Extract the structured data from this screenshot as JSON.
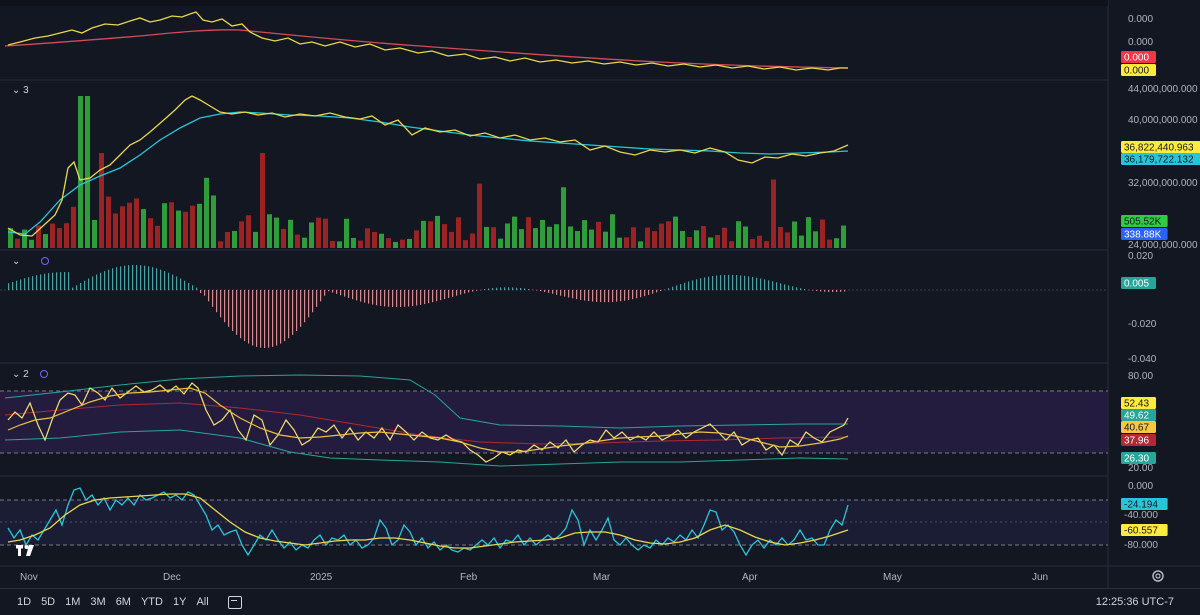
{
  "panes": {
    "price": {
      "right_ticks": [
        "0.000",
        "0.000"
      ],
      "badges": [
        {
          "value": "0.000",
          "bg": "#f23645",
          "fg": "#ffffff"
        },
        {
          "value": "0.000",
          "bg": "#ffeb3b",
          "fg": "#131722"
        }
      ]
    },
    "volume": {
      "collapse_label": "3",
      "right_ticks": [
        "44,000,000.000",
        "40,000,000.000",
        "32,000,000.000",
        "24,000,000.000"
      ],
      "badges": [
        {
          "value": "36,822,440.963",
          "bg": "#ffeb3b",
          "fg": "#131722"
        },
        {
          "value": "36,179,722.132",
          "bg": "#26c6da",
          "fg": "#131722"
        },
        {
          "value": "505.52K",
          "bg": "#2ecc40",
          "fg": "#131722"
        },
        {
          "value": "338.88K",
          "bg": "#2962ff",
          "fg": "#ffffff"
        }
      ]
    },
    "macd": {
      "right_ticks": [
        "0.020",
        "-0.020",
        "-0.040"
      ],
      "badge": {
        "value": "0.005",
        "bg": "#26a69a",
        "fg": "#ffffff"
      }
    },
    "rsi": {
      "collapse_label": "2",
      "right_ticks": [
        "80.00",
        "20.00"
      ],
      "badges": [
        {
          "value": "52.43",
          "bg": "#ffeb3b",
          "fg": "#131722"
        },
        {
          "value": "49.62",
          "bg": "#26a69a",
          "fg": "#ffffff"
        },
        {
          "value": "40.67",
          "bg": "#f5c842",
          "fg": "#131722"
        },
        {
          "value": "37.96",
          "bg": "#b22833",
          "fg": "#ffffff"
        },
        {
          "value": "26.30",
          "bg": "#26a69a",
          "fg": "#ffffff"
        }
      ]
    },
    "wr": {
      "right_ticks": [
        "0.000",
        "-40.000",
        "-80.000"
      ],
      "badges": [
        {
          "value": "-24.194",
          "bg": "#26c6da",
          "fg": "#131722"
        },
        {
          "value": "-60.557",
          "bg": "#ffeb3b",
          "fg": "#131722"
        }
      ]
    }
  },
  "time_axis": [
    "Nov",
    "Dec",
    "2025",
    "Feb",
    "Mar",
    "Apr",
    "May",
    "Jun"
  ],
  "toolbar": {
    "ranges": [
      "1D",
      "5D",
      "1M",
      "3M",
      "6M",
      "YTD",
      "1Y",
      "All"
    ],
    "clock": "12:25:36 UTC-7"
  },
  "colors": {
    "background": "#131722",
    "grid": "#2a2e39",
    "up": "#26a69a",
    "down": "#ef5350",
    "vol_up": "#2e9e3a",
    "vol_down": "#9c2323",
    "yellow": "#ffeb3b",
    "cyan": "#26c6da",
    "red_ma": "#d64a5b"
  },
  "icons": {
    "collapse": "chevron-down-icon",
    "settings": "gear-icon",
    "logo": "tradingview-logo-icon",
    "date_range": "date-range-icon"
  }
}
